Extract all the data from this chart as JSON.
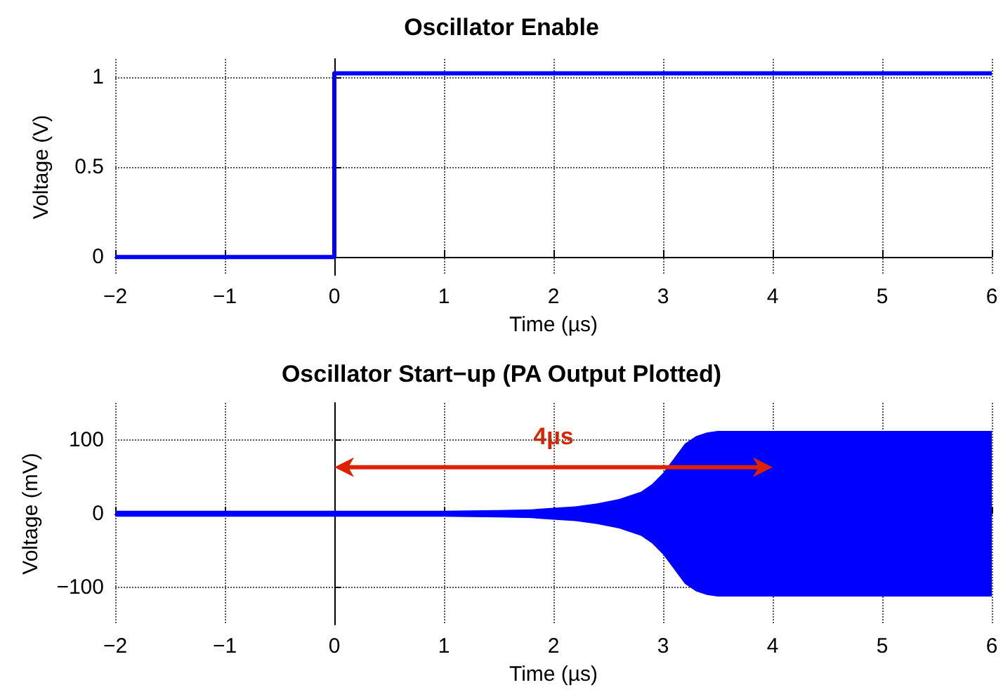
{
  "chart_data": [
    {
      "type": "line",
      "title": "Oscillator Enable",
      "xlabel": "Time (µs)",
      "ylabel": "Voltage (V)",
      "xlim": [
        -2,
        6
      ],
      "xticks": [
        -2,
        -1,
        0,
        1,
        2,
        3,
        4,
        5,
        6
      ],
      "ylim": [
        -0.1,
        1.1
      ],
      "yticks": [
        0,
        0.5,
        1
      ],
      "grid": true,
      "marker": "none",
      "series": [
        {
          "color": "#0000ff",
          "x": [
            -2,
            -1,
            0,
            0,
            0.5,
            1,
            2,
            3,
            4,
            5,
            6
          ],
          "values": [
            0,
            0,
            0,
            1.02,
            1.02,
            1.02,
            1.02,
            1.02,
            1.02,
            1.02,
            1.02
          ]
        }
      ]
    },
    {
      "type": "line",
      "title": "Oscillator Start−up (PA Output Plotted)",
      "xlabel": "Time (µs)",
      "ylabel": "Voltage (mV)",
      "xlim": [
        -2,
        6
      ],
      "xticks": [
        -2,
        -1,
        0,
        1,
        2,
        3,
        4,
        5,
        6
      ],
      "ylim": [
        -150,
        150
      ],
      "yticks": [
        -100,
        0,
        100
      ],
      "grid": true,
      "marker": "none",
      "annotations": [
        "4µs"
      ],
      "series": [
        {
          "color": "#0000ff",
          "x": [
            -2,
            0,
            1,
            1.5,
            1.8,
            2,
            2.2,
            2.4,
            2.6,
            2.8,
            2.9,
            3,
            3.1,
            3.2,
            3.3,
            3.4,
            3.5,
            4,
            5,
            6
          ],
          "values": [
            0,
            0,
            0,
            0,
            0,
            0,
            0,
            0,
            0,
            0,
            0,
            0,
            0,
            0,
            0,
            0,
            0,
            0,
            0,
            0
          ],
          "upper": [
            4,
            4,
            4,
            5,
            6,
            8,
            10,
            14,
            20,
            30,
            40,
            55,
            75,
            95,
            105,
            110,
            112,
            112,
            112,
            112
          ],
          "lower": [
            -4,
            -4,
            -4,
            -5,
            -6,
            -8,
            -10,
            -14,
            -20,
            -30,
            -40,
            -55,
            -75,
            -95,
            -105,
            -110,
            -112,
            -112,
            -112,
            -112
          ]
        }
      ]
    }
  ]
}
